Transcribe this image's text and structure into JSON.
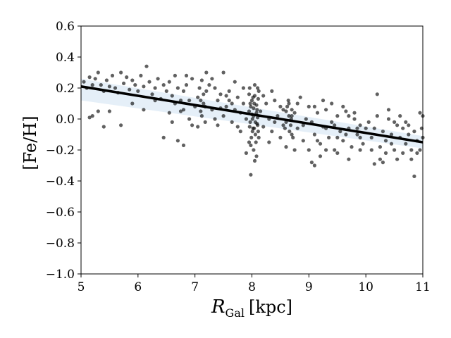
{
  "chart_data": {
    "type": "scatter",
    "title": "",
    "xlabel": {
      "symbol": "R",
      "subscript": "Gal",
      "unit": "[kpc]"
    },
    "ylabel": "[Fe/H]",
    "xlim": [
      5,
      11
    ],
    "ylim": [
      -1.0,
      0.6
    ],
    "xticks": [
      5,
      6,
      7,
      8,
      9,
      10,
      11
    ],
    "yticks": [
      -1.0,
      -0.8,
      -0.6,
      -0.4,
      -0.2,
      0.0,
      0.2,
      0.4,
      0.6
    ],
    "xtick_labels": [
      "5",
      "6",
      "7",
      "8",
      "9",
      "10",
      "11"
    ],
    "ytick_labels": [
      "−1.0",
      "−0.8",
      "−0.6",
      "−0.4",
      "−0.2",
      "0.0",
      "0.2",
      "0.4",
      "0.6"
    ],
    "grid": false,
    "legend": "none",
    "fit_line": {
      "x": [
        5,
        11
      ],
      "y": [
        0.21,
        -0.15
      ],
      "color": "#000000"
    },
    "uncertainty_band": {
      "x": [
        5,
        11
      ],
      "upper": [
        0.26,
        -0.11
      ],
      "lower": [
        0.12,
        -0.19
      ],
      "color": "#c6dbef"
    },
    "series": [
      {
        "color": "#000000",
        "points": [
          [
            5.05,
            0.24
          ],
          [
            5.1,
            0.2
          ],
          [
            5.15,
            0.27
          ],
          [
            5.2,
            0.22
          ],
          [
            5.25,
            0.26
          ],
          [
            5.3,
            0.3
          ],
          [
            5.35,
            0.22
          ],
          [
            5.4,
            0.18
          ],
          [
            5.45,
            0.25
          ],
          [
            5.5,
            0.21
          ],
          [
            5.55,
            0.28
          ],
          [
            5.6,
            0.2
          ],
          [
            5.65,
            0.17
          ],
          [
            5.7,
            0.3
          ],
          [
            5.75,
            0.23
          ],
          [
            5.8,
            0.27
          ],
          [
            5.85,
            0.19
          ],
          [
            5.9,
            0.25
          ],
          [
            5.95,
            0.22
          ],
          [
            6.0,
            0.18
          ],
          [
            6.05,
            0.28
          ],
          [
            6.1,
            0.21
          ],
          [
            6.15,
            0.34
          ],
          [
            6.2,
            0.24
          ],
          [
            6.25,
            0.16
          ],
          [
            6.3,
            0.2
          ],
          [
            6.35,
            0.26
          ],
          [
            6.4,
            0.13
          ],
          [
            6.45,
            0.22
          ],
          [
            6.5,
            0.18
          ],
          [
            5.2,
            0.02
          ],
          [
            5.3,
            0.05
          ],
          [
            5.4,
            -0.05
          ],
          [
            5.5,
            0.05
          ],
          [
            5.7,
            -0.04
          ],
          [
            5.9,
            0.1
          ],
          [
            6.1,
            0.06
          ],
          [
            6.3,
            0.12
          ],
          [
            6.45,
            -0.12
          ],
          [
            5.15,
            0.01
          ],
          [
            6.55,
            0.24
          ],
          [
            6.6,
            0.15
          ],
          [
            6.65,
            0.1
          ],
          [
            6.7,
            0.2
          ],
          [
            6.75,
            0.05
          ],
          [
            6.8,
            0.18
          ],
          [
            6.85,
            0.22
          ],
          [
            6.9,
            0.12
          ],
          [
            6.95,
            0.26
          ],
          [
            7.0,
            0.08
          ],
          [
            6.6,
            -0.02
          ],
          [
            6.7,
            -0.14
          ],
          [
            6.8,
            -0.17
          ],
          [
            6.9,
            0.0
          ],
          [
            6.75,
            0.12
          ],
          [
            6.85,
            0.28
          ],
          [
            6.95,
            -0.04
          ],
          [
            6.55,
            0.04
          ],
          [
            6.65,
            0.28
          ],
          [
            6.8,
            0.06
          ],
          [
            7.05,
            0.14
          ],
          [
            7.08,
            0.2
          ],
          [
            7.1,
            0.05
          ],
          [
            7.12,
            0.25
          ],
          [
            7.15,
            0.1
          ],
          [
            7.18,
            -0.02
          ],
          [
            7.2,
            0.3
          ],
          [
            7.1,
            0.12
          ],
          [
            7.15,
            0.16
          ],
          [
            7.05,
            -0.05
          ],
          [
            7.12,
            0.02
          ],
          [
            7.18,
            0.08
          ],
          [
            7.2,
            0.18
          ],
          [
            7.25,
            0.22
          ],
          [
            7.3,
            0.06
          ],
          [
            7.35,
            0.0
          ],
          [
            7.4,
            0.12
          ],
          [
            7.45,
            0.16
          ],
          [
            7.5,
            0.3
          ],
          [
            7.55,
            0.08
          ],
          [
            7.3,
            0.26
          ],
          [
            7.4,
            -0.04
          ],
          [
            7.5,
            0.02
          ],
          [
            7.6,
            0.18
          ],
          [
            7.65,
            0.1
          ],
          [
            7.7,
            0.06
          ],
          [
            7.75,
            0.14
          ],
          [
            7.8,
            0.04
          ],
          [
            7.85,
            0.2
          ],
          [
            7.9,
            0.0
          ],
          [
            7.35,
            0.2
          ],
          [
            7.45,
            0.07
          ],
          [
            7.55,
            0.15
          ],
          [
            7.65,
            -0.02
          ],
          [
            7.75,
            -0.05
          ],
          [
            7.85,
            0.1
          ],
          [
            7.95,
            0.16
          ],
          [
            7.6,
            0.12
          ],
          [
            7.7,
            0.24
          ],
          [
            7.8,
            -0.08
          ],
          [
            7.95,
            0.05
          ],
          [
            7.97,
            -0.02
          ],
          [
            7.98,
            0.08
          ],
          [
            8.0,
            0.12
          ],
          [
            8.02,
            -0.06
          ],
          [
            8.03,
            0.02
          ],
          [
            8.05,
            0.15
          ],
          [
            8.06,
            -0.1
          ],
          [
            8.08,
            0.04
          ],
          [
            8.1,
            -0.04
          ],
          [
            7.96,
            0.2
          ],
          [
            7.99,
            -0.12
          ],
          [
            8.01,
            0.0
          ],
          [
            8.04,
            0.1
          ],
          [
            8.07,
            -0.15
          ],
          [
            8.09,
            0.06
          ],
          [
            8.11,
            -0.08
          ],
          [
            8.12,
            0.18
          ],
          [
            8.03,
            -0.2
          ],
          [
            8.05,
            0.22
          ],
          [
            7.98,
            -0.17
          ],
          [
            8.0,
            0.03
          ],
          [
            8.02,
            0.14
          ],
          [
            8.06,
            -0.02
          ],
          [
            8.08,
            0.09
          ],
          [
            8.1,
            0.01
          ],
          [
            8.12,
            -0.12
          ],
          [
            7.97,
            0.1
          ],
          [
            8.04,
            -0.06
          ],
          [
            8.1,
            0.2
          ],
          [
            7.98,
            -0.36
          ],
          [
            8.05,
            -0.27
          ],
          [
            8.08,
            -0.24
          ],
          [
            7.9,
            -0.22
          ],
          [
            7.95,
            -0.15
          ],
          [
            8.01,
            -0.08
          ],
          [
            8.09,
            -0.03
          ],
          [
            8.11,
            0.13
          ],
          [
            7.96,
            -0.05
          ],
          [
            8.03,
            0.07
          ],
          [
            8.15,
            0.05
          ],
          [
            8.2,
            -0.05
          ],
          [
            8.25,
            0.1
          ],
          [
            8.3,
            0.0
          ],
          [
            8.35,
            -0.08
          ],
          [
            8.4,
            0.12
          ],
          [
            8.45,
            0.02
          ],
          [
            8.5,
            -0.12
          ],
          [
            8.55,
            0.06
          ],
          [
            8.6,
            -0.02
          ],
          [
            8.65,
            0.1
          ],
          [
            8.7,
            -0.1
          ],
          [
            8.75,
            0.04
          ],
          [
            8.8,
            -0.06
          ],
          [
            8.85,
            0.14
          ],
          [
            8.9,
            -0.14
          ],
          [
            8.95,
            0.0
          ],
          [
            9.0,
            0.08
          ],
          [
            8.2,
            0.15
          ],
          [
            8.3,
            -0.15
          ],
          [
            8.4,
            -0.02
          ],
          [
            8.5,
            0.08
          ],
          [
            8.6,
            -0.18
          ],
          [
            8.7,
            0.02
          ],
          [
            8.8,
            0.1
          ],
          [
            8.9,
            -0.04
          ],
          [
            9.0,
            -0.2
          ],
          [
            8.35,
            0.18
          ],
          [
            8.55,
            -0.04
          ],
          [
            8.75,
            -0.2
          ],
          [
            8.6,
            0.05
          ],
          [
            8.65,
            0.02
          ],
          [
            8.68,
            -0.04
          ],
          [
            8.62,
            0.08
          ],
          [
            8.66,
            -0.08
          ],
          [
            8.64,
            0.12
          ],
          [
            8.7,
            0.06
          ],
          [
            8.72,
            -0.12
          ],
          [
            8.58,
            -0.06
          ],
          [
            8.69,
            0.0
          ],
          [
            9.05,
            -0.02
          ],
          [
            9.1,
            -0.1
          ],
          [
            9.15,
            0.04
          ],
          [
            9.2,
            -0.16
          ],
          [
            9.25,
            -0.05
          ],
          [
            9.3,
            0.06
          ],
          [
            9.35,
            -0.12
          ],
          [
            9.4,
            -0.02
          ],
          [
            9.45,
            -0.2
          ],
          [
            9.5,
            0.02
          ],
          [
            9.55,
            -0.08
          ],
          [
            9.6,
            -0.14
          ],
          [
            9.65,
            0.05
          ],
          [
            9.7,
            -0.06
          ],
          [
            9.75,
            -0.18
          ],
          [
            9.8,
            0.0
          ],
          [
            9.85,
            -0.1
          ],
          [
            9.9,
            -0.04
          ],
          [
            9.95,
            -0.16
          ],
          [
            10.0,
            -0.06
          ],
          [
            9.1,
            -0.3
          ],
          [
            9.2,
            -0.24
          ],
          [
            9.3,
            -0.2
          ],
          [
            9.05,
            -0.28
          ],
          [
            9.4,
            0.1
          ],
          [
            9.6,
            0.08
          ],
          [
            9.7,
            -0.26
          ],
          [
            9.8,
            0.04
          ],
          [
            9.5,
            -0.22
          ],
          [
            9.9,
            -0.2
          ],
          [
            9.1,
            0.08
          ],
          [
            9.3,
            -0.06
          ],
          [
            9.5,
            -0.12
          ],
          [
            9.7,
            0.02
          ],
          [
            9.9,
            -0.12
          ],
          [
            9.25,
            0.12
          ],
          [
            9.45,
            -0.04
          ],
          [
            9.65,
            -0.1
          ],
          [
            9.85,
            -0.06
          ],
          [
            9.15,
            -0.14
          ],
          [
            10.05,
            -0.02
          ],
          [
            10.1,
            -0.12
          ],
          [
            10.15,
            -0.06
          ],
          [
            10.2,
            0.02
          ],
          [
            10.25,
            -0.18
          ],
          [
            10.3,
            -0.08
          ],
          [
            10.35,
            -0.14
          ],
          [
            10.4,
            0.0
          ],
          [
            10.45,
            -0.1
          ],
          [
            10.5,
            -0.2
          ],
          [
            10.55,
            -0.04
          ],
          [
            10.6,
            -0.12
          ],
          [
            10.65,
            -0.06
          ],
          [
            10.7,
            -0.16
          ],
          [
            10.75,
            -0.1
          ],
          [
            10.8,
            -0.2
          ],
          [
            10.85,
            -0.08
          ],
          [
            10.9,
            -0.14
          ],
          [
            10.95,
            -0.2
          ],
          [
            11.0,
            -0.12
          ],
          [
            10.2,
            0.16
          ],
          [
            10.3,
            -0.28
          ],
          [
            10.25,
            -0.26
          ],
          [
            10.15,
            -0.29
          ],
          [
            10.4,
            0.06
          ],
          [
            10.5,
            -0.02
          ],
          [
            10.6,
            0.02
          ],
          [
            10.7,
            -0.02
          ],
          [
            10.85,
            -0.37
          ],
          [
            10.95,
            0.04
          ],
          [
            10.1,
            -0.2
          ],
          [
            10.35,
            -0.22
          ],
          [
            10.45,
            -0.16
          ],
          [
            10.55,
            -0.26
          ],
          [
            10.65,
            -0.22
          ],
          [
            10.75,
            -0.04
          ],
          [
            10.8,
            -0.26
          ],
          [
            10.9,
            -0.22
          ],
          [
            11.0,
            0.02
          ],
          [
            10.98,
            -0.06
          ]
        ]
      }
    ]
  }
}
